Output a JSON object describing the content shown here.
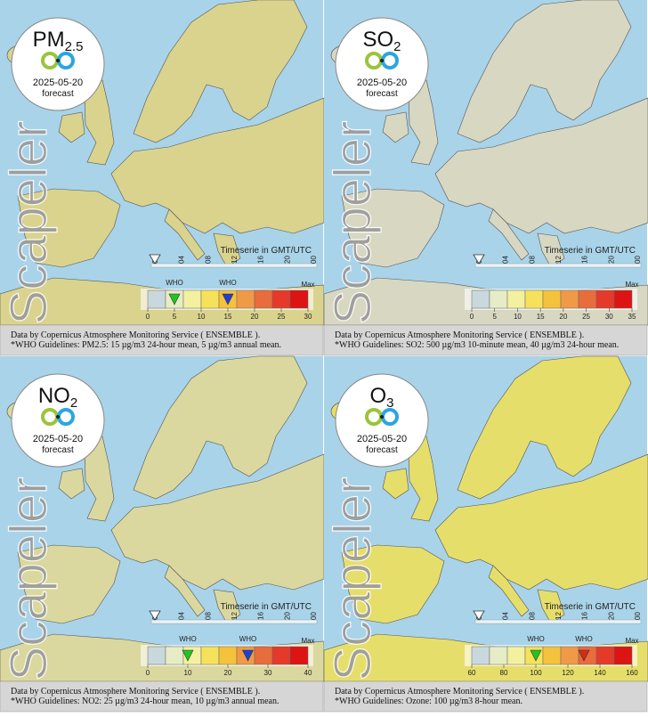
{
  "scale_colors": [
    "#c9d8dc",
    "#e6edc6",
    "#f3f0a0",
    "#f6e25a",
    "#f5c23c",
    "#ef9a46",
    "#e96c3c",
    "#e5392a",
    "#dd1414"
  ],
  "panels": [
    {
      "name": "PM",
      "sub": "2.5",
      "date": "2025-05-20",
      "forecast": "forecast",
      "watermark": "Scapeler",
      "timeserie": "Timeserie in GMT/UTC",
      "hours": [
        "00",
        "04",
        "08",
        "12",
        "16",
        "20",
        "00"
      ],
      "max_label": "Max",
      "scale_ticks": [
        0,
        5,
        10,
        15,
        20,
        25,
        30
      ],
      "who": [
        {
          "label": "WHO",
          "value": 5,
          "color": "#22c422"
        },
        {
          "label": "WHO",
          "value": 15,
          "color": "#1e40d8"
        }
      ],
      "caption": [
        "Data by Copernicus Atmosphere Monitoring Service ( ENSEMBLE ).",
        "*WHO Guidelines: PM2.5: 15 µg/m3 24-hour mean, 5 µg/m3 annual mean."
      ]
    },
    {
      "name": "SO",
      "sub": "2",
      "date": "2025-05-20",
      "forecast": "forecast",
      "watermark": "Scapeler",
      "timeserie": "Timeserie in GMT/UTC",
      "hours": [
        "00",
        "04",
        "08",
        "12",
        "16",
        "20",
        "00"
      ],
      "max_label": "Max",
      "scale_ticks": [
        0,
        5,
        10,
        15,
        20,
        25,
        30,
        35
      ],
      "who": [],
      "caption": [
        "Data by Copernicus Atmosphere Monitoring Service ( ENSEMBLE ).",
        "*WHO Guidelines: SO2: 500 µg/m3 10-minute mean, 40 µg/m3 24-hour mean."
      ]
    },
    {
      "name": "NO",
      "sub": "2",
      "date": "2025-05-20",
      "forecast": "forecast",
      "watermark": "Scapeler",
      "timeserie": "Timeserie in GMT/UTC",
      "hours": [
        "00",
        "04",
        "08",
        "12",
        "16",
        "20",
        "00"
      ],
      "max_label": "Max",
      "scale_ticks": [
        0,
        10,
        20,
        30,
        40
      ],
      "who": [
        {
          "label": "WHO",
          "value": 10,
          "color": "#22c422"
        },
        {
          "label": "WHO",
          "value": 25,
          "color": "#1e40d8"
        }
      ],
      "caption": [
        "Data by Copernicus Atmosphere Monitoring Service ( ENSEMBLE ).",
        "*WHO Guidelines: NO2: 25 µg/m3 24-hour mean, 10 µg/m3 annual mean."
      ]
    },
    {
      "name": "O",
      "sub": "3",
      "date": "2025-05-20",
      "forecast": "forecast",
      "watermark": "Scapeler",
      "timeserie": "Timeserie in GMT/UTC",
      "hours": [
        "00",
        "04",
        "08",
        "12",
        "16",
        "20",
        "00"
      ],
      "max_label": "Max",
      "scale_ticks": [
        60,
        80,
        100,
        120,
        140,
        160
      ],
      "who": [
        {
          "label": "WHO",
          "value": 100,
          "color": "#22c422"
        },
        {
          "label": "WHO",
          "value": 130,
          "color": "#d42a1a"
        }
      ],
      "caption": [
        "Data by Copernicus Atmosphere Monitoring Service ( ENSEMBLE ).",
        "*WHO Guidelines: Ozone: 100 µg/m3 8-hour mean."
      ]
    }
  ]
}
